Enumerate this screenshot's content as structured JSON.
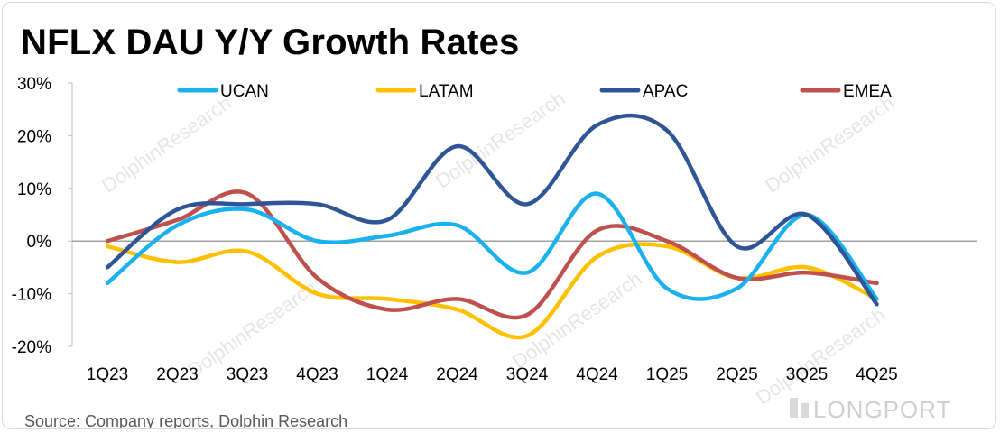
{
  "title": "NFLX DAU Y/Y Growth Rates",
  "source": "Source: Company reports, Dolphin Research",
  "brand": "LONGPORT",
  "watermark": "DolphinResearch",
  "chart_data": {
    "type": "line",
    "title": "NFLX DAU Y/Y Growth Rates",
    "categories": [
      "1Q23",
      "2Q23",
      "3Q23",
      "4Q23",
      "1Q24",
      "2Q24",
      "3Q24",
      "4Q24",
      "1Q25",
      "2Q25",
      "3Q25",
      "4Q25"
    ],
    "series": [
      {
        "name": "UCAN",
        "color": "#1ab2ee",
        "values": [
          -8,
          3,
          6,
          0,
          1,
          3,
          -6,
          9,
          -9,
          -9,
          5,
          -11
        ]
      },
      {
        "name": "LATAM",
        "color": "#ffc000",
        "values": [
          -1,
          -4,
          -2,
          -10,
          -11,
          -13,
          -18,
          -3,
          -1,
          -7,
          -5,
          -11
        ]
      },
      {
        "name": "APAC",
        "color": "#2f5597",
        "values": [
          -5,
          6,
          7,
          7,
          4,
          18,
          7,
          22,
          21,
          -1,
          5,
          -12
        ]
      },
      {
        "name": "EMEA",
        "color": "#c0504d",
        "values": [
          0,
          4,
          9,
          -7,
          -13,
          -11,
          -14,
          2,
          0,
          -7,
          -6,
          -8
        ]
      }
    ],
    "y_ticks": [
      "30%",
      "20%",
      "10%",
      "0%",
      "-10%",
      "-20%"
    ],
    "y_tick_values": [
      30,
      20,
      10,
      0,
      -10,
      -20
    ],
    "ylim": [
      -20,
      30
    ],
    "xlabel": "",
    "ylabel": "",
    "grid": false,
    "legend_position": "top"
  }
}
